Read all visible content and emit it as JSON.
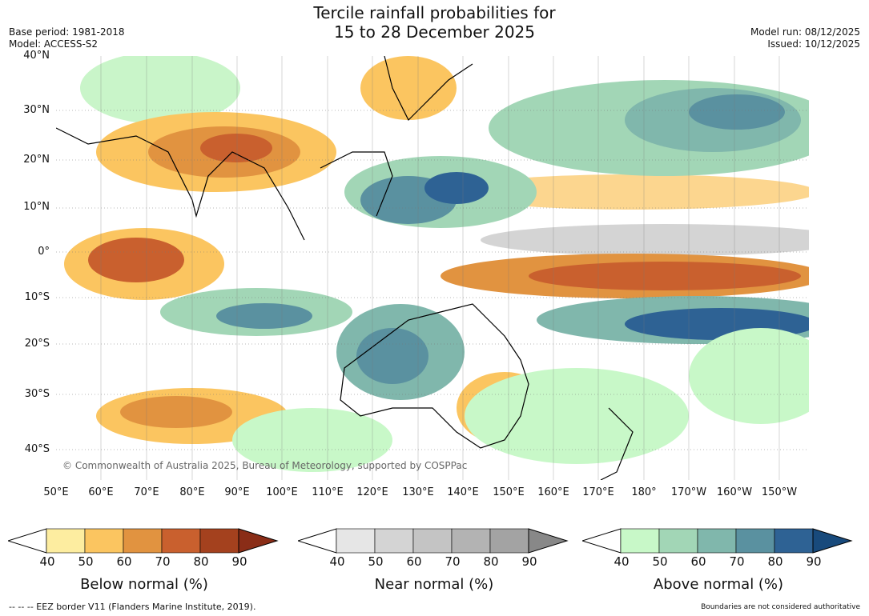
{
  "title_line1": "Tercile rainfall probabilities for",
  "title_line2": "15 to 28 December 2025",
  "base_period": "Base period: 1981-2018",
  "model": "Model: ACCESS-S2",
  "model_run": "Model run: 08/12/2025",
  "issued": "Issued: 10/12/2025",
  "copyright": "© Commonwealth of Australia 2025, Bureau of Meteorology, supported by COSPPac",
  "lat_labels": [
    "40°N",
    "30°N",
    "20°N",
    "10°N",
    "0°",
    "10°S",
    "20°S",
    "30°S",
    "40°S"
  ],
  "lon_labels": [
    "50°E",
    "60°E",
    "70°E",
    "80°E",
    "90°E",
    "100°E",
    "110°E",
    "120°E",
    "130°E",
    "140°E",
    "150°E",
    "160°E",
    "170°E",
    "180°",
    "170°W",
    "160°W",
    "150°W"
  ],
  "colorbars": [
    {
      "title": "Below normal (%)",
      "ticks": [
        "40",
        "50",
        "60",
        "70",
        "80",
        "90"
      ],
      "colors": [
        "#ffffff",
        "#fdeda0",
        "#fbc560",
        "#e19340",
        "#c9602e",
        "#a4411e",
        "#8a2d17"
      ]
    },
    {
      "title": "Near normal (%)",
      "ticks": [
        "40",
        "50",
        "60",
        "70",
        "80",
        "90"
      ],
      "colors": [
        "#ffffff",
        "#e6e6e6",
        "#d4d4d4",
        "#c4c4c4",
        "#b3b3b3",
        "#a3a3a3",
        "#888888"
      ]
    },
    {
      "title": "Above normal (%)",
      "ticks": [
        "40",
        "50",
        "60",
        "70",
        "80",
        "90"
      ],
      "colors": [
        "#ffffff",
        "#c8f8c8",
        "#a2d6b6",
        "#80b7ac",
        "#5a91a0",
        "#2e6294",
        "#184a7c"
      ]
    }
  ],
  "footer_left": "--  --  -- EEZ border V11 (Flanders Marine Institute, 2019).",
  "footer_right": "Boundaries are not considered authoritative"
}
